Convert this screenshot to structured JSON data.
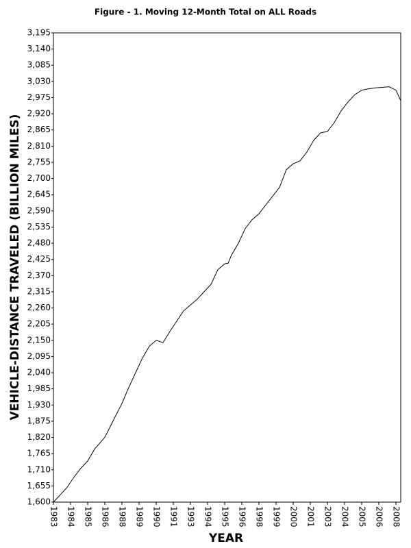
{
  "chart_data": {
    "type": "line",
    "title": "Figure - 1.  Moving 12-Month Total on ALL Roads",
    "x_label": "YEAR",
    "y_label": "VEHICLE-DISTANCE TRAVELED (BILLION MILES)",
    "xlim": [
      1983,
      2008.35
    ],
    "xticks": [
      {
        "value": 1983,
        "label": "1983"
      },
      {
        "value": 1984.25,
        "label": "1984"
      },
      {
        "value": 1985.5,
        "label": "1985"
      },
      {
        "value": 1986.75,
        "label": "1986"
      },
      {
        "value": 1988,
        "label": "1988"
      },
      {
        "value": 1989.25,
        "label": "1989"
      },
      {
        "value": 1990.5,
        "label": "1990"
      },
      {
        "value": 1991.75,
        "label": "1991"
      },
      {
        "value": 1993,
        "label": "1993"
      },
      {
        "value": 1994.25,
        "label": "1994"
      },
      {
        "value": 1995.5,
        "label": "1995"
      },
      {
        "value": 1996.75,
        "label": "1996"
      },
      {
        "value": 1998,
        "label": "1998"
      },
      {
        "value": 1999.25,
        "label": "1999"
      },
      {
        "value": 2000.5,
        "label": "2000"
      },
      {
        "value": 2001.75,
        "label": "2001"
      },
      {
        "value": 2003,
        "label": "2003"
      },
      {
        "value": 2004.25,
        "label": "2004"
      },
      {
        "value": 2005.5,
        "label": "2005"
      },
      {
        "value": 2006.75,
        "label": "2006"
      },
      {
        "value": 2008,
        "label": "2008"
      }
    ],
    "ylim": [
      1600,
      3195
    ],
    "yticks": [
      {
        "value": 1600,
        "label": "1,600"
      },
      {
        "value": 1655,
        "label": "1,655"
      },
      {
        "value": 1710,
        "label": "1,710"
      },
      {
        "value": 1765,
        "label": "1,765"
      },
      {
        "value": 1820,
        "label": "1,820"
      },
      {
        "value": 1875,
        "label": "1,875"
      },
      {
        "value": 1930,
        "label": "1,930"
      },
      {
        "value": 1985,
        "label": "1,985"
      },
      {
        "value": 2040,
        "label": "2,040"
      },
      {
        "value": 2095,
        "label": "2,095"
      },
      {
        "value": 2150,
        "label": "2,150"
      },
      {
        "value": 2205,
        "label": "2,205"
      },
      {
        "value": 2260,
        "label": "2,260"
      },
      {
        "value": 2315,
        "label": "2,315"
      },
      {
        "value": 2370,
        "label": "2,370"
      },
      {
        "value": 2425,
        "label": "2,425"
      },
      {
        "value": 2480,
        "label": "2,480"
      },
      {
        "value": 2535,
        "label": "2,535"
      },
      {
        "value": 2590,
        "label": "2,590"
      },
      {
        "value": 2645,
        "label": "2,645"
      },
      {
        "value": 2700,
        "label": "2,700"
      },
      {
        "value": 2755,
        "label": "2,755"
      },
      {
        "value": 2810,
        "label": "2,810"
      },
      {
        "value": 2865,
        "label": "2,865"
      },
      {
        "value": 2920,
        "label": "2,920"
      },
      {
        "value": 2975,
        "label": "2,975"
      },
      {
        "value": 3030,
        "label": "3,030"
      },
      {
        "value": 3085,
        "label": "3,085"
      },
      {
        "value": 3140,
        "label": "3,140"
      },
      {
        "value": 3195,
        "label": "3,195"
      }
    ],
    "grid": false,
    "color": "#000000",
    "x": [
      1983,
      1983.5,
      1984,
      1984.5,
      1985,
      1985.5,
      1986,
      1986.75,
      1987.5,
      1988,
      1988.5,
      1989,
      1989.5,
      1990,
      1990.5,
      1991,
      1991.5,
      1992,
      1992.5,
      1993,
      1993.5,
      1994,
      1994.5,
      1995,
      1995.5,
      1995.75,
      1996,
      1996.5,
      1997,
      1997.5,
      1998,
      1998.5,
      1999,
      1999.5,
      2000,
      2000.5,
      2001,
      2001.5,
      2002,
      2002.5,
      2003,
      2003.5,
      2004,
      2004.5,
      2005,
      2005.5,
      2006,
      2006.5,
      2007,
      2007.5,
      2008,
      2008.35
    ],
    "values": [
      1600,
      1625,
      1650,
      1685,
      1715,
      1740,
      1780,
      1820,
      1890,
      1935,
      1990,
      2040,
      2090,
      2130,
      2150,
      2142,
      2180,
      2215,
      2250,
      2270,
      2290,
      2315,
      2340,
      2390,
      2410,
      2412,
      2440,
      2480,
      2530,
      2560,
      2580,
      2610,
      2640,
      2670,
      2730,
      2750,
      2760,
      2790,
      2830,
      2855,
      2860,
      2890,
      2930,
      2960,
      2985,
      3000,
      3005,
      3008,
      3010,
      3012,
      3000,
      2965
    ]
  }
}
